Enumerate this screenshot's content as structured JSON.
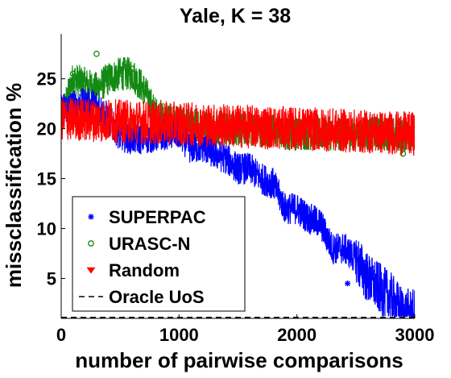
{
  "chart_data": {
    "type": "line",
    "title": "Yale, K = 38",
    "xlabel": "number of pairwise comparisons",
    "ylabel": "missclassification %",
    "xlim": [
      0,
      3000
    ],
    "ylim": [
      1,
      29.5
    ],
    "xticks": [
      0,
      1000,
      2000,
      3000
    ],
    "yticks": [
      5,
      10,
      15,
      20,
      25
    ],
    "grid": false,
    "legend_position": "bottom-left",
    "series": [
      {
        "name": "SUPERPAC",
        "color": "#0000ff",
        "marker": "asterisk",
        "noise": 1.6,
        "x": [
          0,
          100,
          200,
          300,
          400,
          500,
          600,
          700,
          800,
          900,
          1000,
          1100,
          1200,
          1300,
          1400,
          1500,
          1600,
          1700,
          1800,
          1900,
          2000,
          2100,
          2200,
          2300,
          2400,
          2500,
          2600,
          2700,
          2800,
          2900,
          3000
        ],
        "y": [
          22,
          22.3,
          22.5,
          22.4,
          21,
          19.3,
          19,
          19,
          19.2,
          19.5,
          19.5,
          18,
          18.2,
          17.5,
          17,
          16,
          16,
          15,
          14.5,
          12,
          12,
          11,
          10.5,
          8,
          8,
          7,
          5,
          4,
          3,
          1.5,
          1.3
        ],
        "marker_x": [
          0,
          300,
          500,
          1000,
          1100,
          1500,
          1700,
          2000,
          2200,
          2430,
          2700,
          3000
        ],
        "marker_y": [
          22,
          22.4,
          19.5,
          18.5,
          18,
          16.5,
          14.8,
          11.5,
          10,
          4.5,
          4.2,
          1.3
        ]
      },
      {
        "name": "URASC-N",
        "color": "#138a13",
        "marker": "circle",
        "noise": 1.7,
        "x": [
          0,
          100,
          200,
          300,
          400,
          500,
          600,
          700,
          800,
          900,
          1000,
          1100,
          1200,
          1300,
          1400,
          1500,
          1600,
          1700,
          1800,
          1900,
          2000,
          2100,
          2200,
          2300,
          2400,
          2500,
          2600,
          2700,
          2800,
          2900,
          3000
        ],
        "y": [
          21,
          25,
          24.5,
          24,
          25,
          25.5,
          25.5,
          24,
          21.5,
          21,
          20.5,
          20.5,
          20.3,
          20,
          20,
          20,
          20,
          19.8,
          19.8,
          19.5,
          19.5,
          19.5,
          19.5,
          19.5,
          19.5,
          19.5,
          19.5,
          19.5,
          19.5,
          19.3,
          19.5
        ],
        "marker_x": [
          0,
          100,
          200,
          300,
          400,
          500,
          600,
          700,
          800,
          1000,
          1400,
          1800,
          2200,
          2600,
          2900,
          3000
        ],
        "marker_y": [
          20.5,
          25.5,
          24.5,
          27.5,
          26,
          25.5,
          26,
          24,
          21.5,
          20.5,
          20,
          19.8,
          19.5,
          19.5,
          17.5,
          21
        ]
      },
      {
        "name": "Random",
        "color": "#ff0000",
        "marker": "triangle-down",
        "noise": 2.2,
        "x": [
          0,
          3000
        ],
        "y": [
          21,
          19.5
        ],
        "marker_x": [
          0,
          3000
        ],
        "marker_y": [
          22.3,
          18.2
        ]
      },
      {
        "name": "Oracle UoS",
        "color": "#000000",
        "dash": "dashed",
        "x": [
          0,
          3000
        ],
        "y": [
          1.1,
          1.1
        ]
      }
    ]
  }
}
